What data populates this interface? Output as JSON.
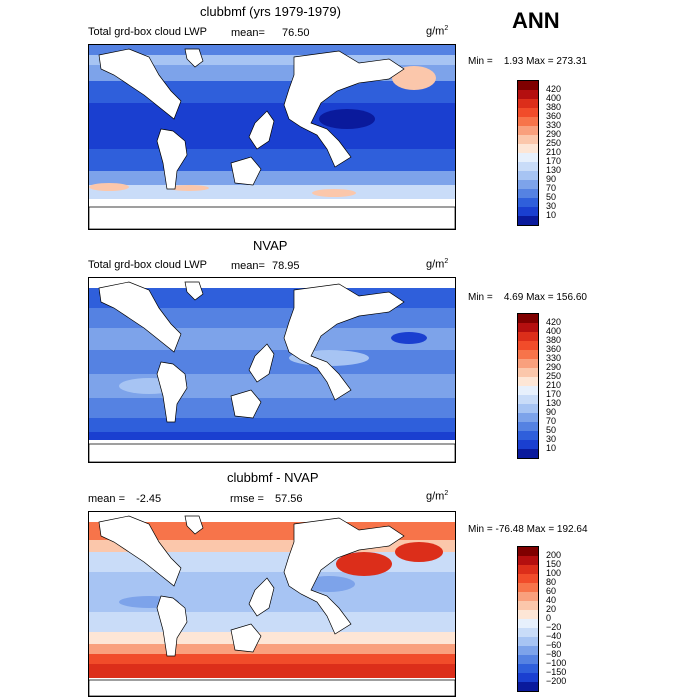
{
  "season": "ANN",
  "unit_base": "g/m",
  "unit_exp": "2",
  "panels": [
    {
      "title": "clubbmf (yrs 1979-1979)",
      "left_label": "Total grd-box cloud LWP",
      "mean_label": "mean=",
      "mean_value": "76.50",
      "minmax": "Min =    1.93 Max = 273.31",
      "colorbar": [
        "420",
        "400",
        "380",
        "360",
        "330",
        "290",
        "250",
        "210",
        "170",
        "130",
        "90",
        "70",
        "50",
        "30",
        "10"
      ],
      "colors": [
        "#7f0000",
        "#b40f0f",
        "#dc2e1a",
        "#f14c2a",
        "#f7744a",
        "#f9a07d",
        "#fbc7ab",
        "#fde6d6",
        "#e7f0fc",
        "#c9dcf8",
        "#a7c4f3",
        "#7da3ea",
        "#5582e2",
        "#2f5fdb",
        "#1a3fd0",
        "#0a1a9c"
      ]
    },
    {
      "title": "NVAP",
      "left_label": "Total grd-box cloud LWP",
      "mean_label": "mean=",
      "mean_value": "78.95",
      "minmax": "Min =    4.69 Max = 156.60",
      "colorbar": [
        "420",
        "400",
        "380",
        "360",
        "330",
        "290",
        "250",
        "210",
        "170",
        "130",
        "90",
        "70",
        "50",
        "30",
        "10"
      ],
      "colors": [
        "#7f0000",
        "#b40f0f",
        "#dc2e1a",
        "#f14c2a",
        "#f7744a",
        "#f9a07d",
        "#fbc7ab",
        "#fde6d6",
        "#e7f0fc",
        "#c9dcf8",
        "#a7c4f3",
        "#7da3ea",
        "#5582e2",
        "#2f5fdb",
        "#1a3fd0",
        "#0a1a9c"
      ]
    },
    {
      "title": "clubbmf - NVAP",
      "left_label": "mean =",
      "mean_value": "-2.45",
      "rmse_label": "rmse =",
      "rmse_value": "57.56",
      "minmax": "Min = -76.48 Max = 192.64",
      "colorbar": [
        "200",
        "150",
        "100",
        "80",
        "60",
        "40",
        "20",
        "0",
        "−20",
        "−40",
        "−60",
        "−80",
        "−100",
        "−150",
        "−200"
      ],
      "colors": [
        "#7f0000",
        "#b40f0f",
        "#dc2e1a",
        "#f14c2a",
        "#f7744a",
        "#f9a07d",
        "#fbc7ab",
        "#fde6d6",
        "#e7f0fc",
        "#c9dcf8",
        "#a7c4f3",
        "#7da3ea",
        "#5582e2",
        "#2f5fdb",
        "#1a3fd0",
        "#0a1a9c"
      ]
    }
  ]
}
